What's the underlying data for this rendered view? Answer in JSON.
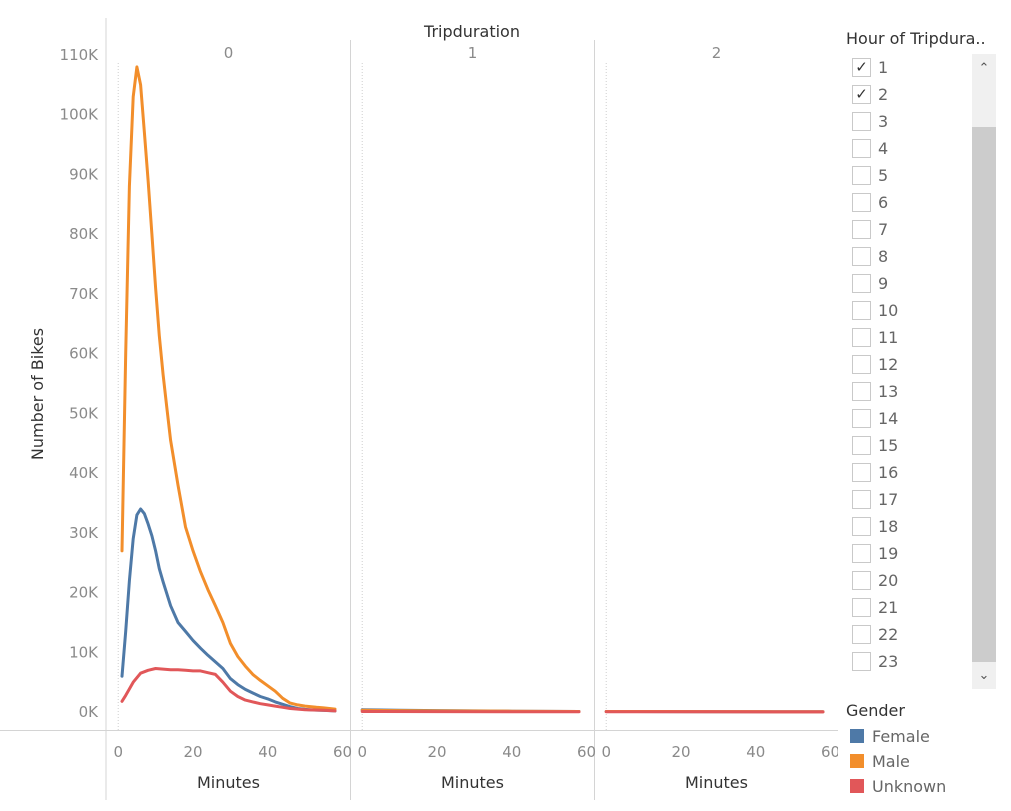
{
  "chart_data": {
    "type": "line",
    "column_header": "Tripduration",
    "panels": [
      "0",
      "1",
      "2"
    ],
    "xlabel": "Minutes",
    "ylabel": "Number of Bikes",
    "xlim": [
      -3,
      62
    ],
    "x_ticks": [
      "0",
      "20",
      "40",
      "60"
    ],
    "ylim": [
      -3000,
      112000
    ],
    "y_ticks": [
      "0K",
      "10K",
      "20K",
      "30K",
      "40K",
      "50K",
      "60K",
      "70K",
      "80K",
      "90K",
      "100K",
      "110K"
    ],
    "grid": false,
    "legend_position": "right",
    "series": [
      {
        "name": "Female",
        "color": "#4e79a7",
        "panels": [
          [
            [
              1,
              6000
            ],
            [
              2,
              13500
            ],
            [
              3,
              22000
            ],
            [
              4,
              29000
            ],
            [
              5,
              33000
            ],
            [
              6,
              34000
            ],
            [
              7,
              33200
            ],
            [
              8,
              31500
            ],
            [
              9,
              29500
            ],
            [
              10,
              27000
            ],
            [
              11,
              24000
            ],
            [
              12,
              21800
            ],
            [
              14,
              17800
            ],
            [
              16,
              15000
            ],
            [
              18,
              13500
            ],
            [
              20,
              12000
            ],
            [
              22,
              10700
            ],
            [
              24,
              9500
            ],
            [
              26,
              8400
            ],
            [
              28,
              7300
            ],
            [
              30,
              5600
            ],
            [
              32,
              4600
            ],
            [
              34,
              3800
            ],
            [
              36,
              3200
            ],
            [
              38,
              2600
            ],
            [
              40,
              2200
            ],
            [
              42,
              1700
            ],
            [
              44,
              1300
            ],
            [
              46,
              900
            ],
            [
              48,
              600
            ],
            [
              50,
              450
            ],
            [
              52,
              350
            ],
            [
              55,
              280
            ],
            [
              58,
              200
            ]
          ],
          [
            [
              0,
              400
            ],
            [
              10,
              300
            ],
            [
              20,
              250
            ],
            [
              30,
              200
            ],
            [
              40,
              150
            ],
            [
              50,
              120
            ],
            [
              58,
              100
            ]
          ],
          [
            [
              0,
              100
            ],
            [
              15,
              80
            ],
            [
              30,
              70
            ],
            [
              45,
              60
            ],
            [
              58,
              50
            ]
          ]
        ]
      },
      {
        "name": "Male",
        "color": "#f28e2b",
        "panels": [
          [
            [
              1,
              27000
            ],
            [
              2,
              60000
            ],
            [
              3,
              88000
            ],
            [
              4,
              103000
            ],
            [
              5,
              108000
            ],
            [
              6,
              105000
            ],
            [
              7,
              97000
            ],
            [
              8,
              89000
            ],
            [
              9,
              80000
            ],
            [
              10,
              71000
            ],
            [
              11,
              63000
            ],
            [
              12,
              56500
            ],
            [
              13,
              51000
            ],
            [
              14,
              45500
            ],
            [
              16,
              38000
            ],
            [
              18,
              31000
            ],
            [
              20,
              27000
            ],
            [
              22,
              23500
            ],
            [
              24,
              20500
            ],
            [
              26,
              17800
            ],
            [
              28,
              15000
            ],
            [
              30,
              11500
            ],
            [
              32,
              9300
            ],
            [
              34,
              7700
            ],
            [
              36,
              6300
            ],
            [
              38,
              5300
            ],
            [
              40,
              4400
            ],
            [
              42,
              3500
            ],
            [
              44,
              2300
            ],
            [
              46,
              1500
            ],
            [
              48,
              1200
            ],
            [
              50,
              1000
            ],
            [
              53,
              800
            ],
            [
              55,
              700
            ],
            [
              58,
              500
            ]
          ],
          [
            [
              0,
              300
            ],
            [
              10,
              250
            ],
            [
              20,
              200
            ],
            [
              30,
              180
            ],
            [
              40,
              150
            ],
            [
              50,
              120
            ],
            [
              58,
              100
            ]
          ],
          [
            [
              0,
              100
            ],
            [
              15,
              90
            ],
            [
              30,
              80
            ],
            [
              45,
              70
            ],
            [
              58,
              60
            ]
          ]
        ]
      },
      {
        "name": "Unknown",
        "color": "#e15759",
        "panels": [
          [
            [
              1,
              1800
            ],
            [
              2,
              2800
            ],
            [
              4,
              5000
            ],
            [
              6,
              6500
            ],
            [
              8,
              7000
            ],
            [
              10,
              7300
            ],
            [
              12,
              7200
            ],
            [
              14,
              7100
            ],
            [
              16,
              7100
            ],
            [
              18,
              7000
            ],
            [
              20,
              6900
            ],
            [
              22,
              6900
            ],
            [
              24,
              6600
            ],
            [
              26,
              6300
            ],
            [
              28,
              5000
            ],
            [
              30,
              3500
            ],
            [
              32,
              2600
            ],
            [
              34,
              2000
            ],
            [
              36,
              1700
            ],
            [
              38,
              1400
            ],
            [
              40,
              1200
            ],
            [
              42,
              1000
            ],
            [
              44,
              800
            ],
            [
              46,
              600
            ],
            [
              48,
              500
            ],
            [
              50,
              400
            ],
            [
              55,
              300
            ],
            [
              58,
              200
            ]
          ],
          [
            [
              0,
              100
            ],
            [
              20,
              80
            ],
            [
              40,
              60
            ],
            [
              58,
              50
            ]
          ],
          [
            [
              0,
              50
            ],
            [
              30,
              40
            ],
            [
              58,
              30
            ]
          ]
        ]
      }
    ]
  },
  "filter": {
    "title": "Hour of Tripdura..",
    "items": [
      {
        "label": "1",
        "checked": true
      },
      {
        "label": "2",
        "checked": true
      },
      {
        "label": "3",
        "checked": false
      },
      {
        "label": "4",
        "checked": false
      },
      {
        "label": "5",
        "checked": false
      },
      {
        "label": "6",
        "checked": false
      },
      {
        "label": "7",
        "checked": false
      },
      {
        "label": "8",
        "checked": false
      },
      {
        "label": "9",
        "checked": false
      },
      {
        "label": "10",
        "checked": false
      },
      {
        "label": "11",
        "checked": false
      },
      {
        "label": "12",
        "checked": false
      },
      {
        "label": "13",
        "checked": false
      },
      {
        "label": "14",
        "checked": false
      },
      {
        "label": "15",
        "checked": false
      },
      {
        "label": "16",
        "checked": false
      },
      {
        "label": "17",
        "checked": false
      },
      {
        "label": "18",
        "checked": false
      },
      {
        "label": "19",
        "checked": false
      },
      {
        "label": "20",
        "checked": false
      },
      {
        "label": "21",
        "checked": false
      },
      {
        "label": "22",
        "checked": false
      },
      {
        "label": "23",
        "checked": false
      }
    ],
    "check_glyph": "✓",
    "up_arrow": "⌃",
    "down_arrow": "⌄"
  },
  "legend": {
    "title": "Gender",
    "items": [
      {
        "label": "Female",
        "color": "#4e79a7"
      },
      {
        "label": "Male",
        "color": "#f28e2b"
      },
      {
        "label": "Unknown",
        "color": "#e15759"
      }
    ]
  }
}
